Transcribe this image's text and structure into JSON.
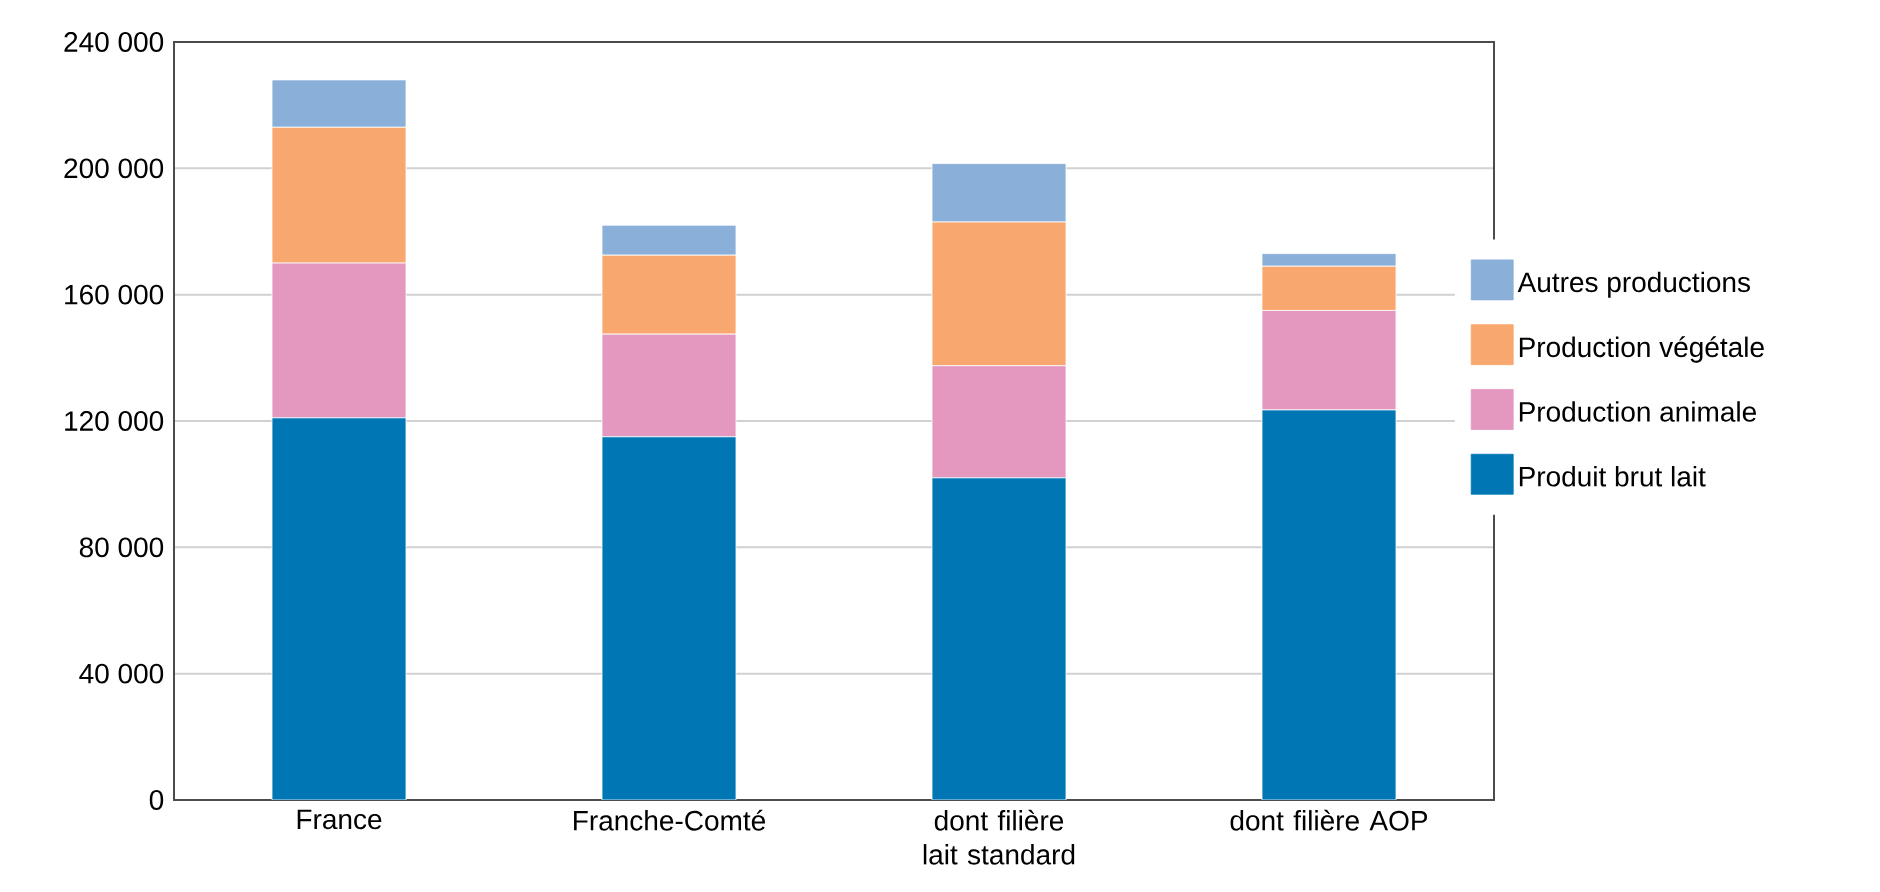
{
  "chart_data": {
    "type": "bar",
    "stacked": true,
    "categories": [
      "France",
      "Franche-Comté",
      "dont filière lait standard",
      "dont filière AOP"
    ],
    "series": [
      {
        "name": "Produit brut lait",
        "color": "#0077b4",
        "values": [
          121000,
          115000,
          102000,
          123500
        ]
      },
      {
        "name": "Production animale",
        "color": "#e498c0",
        "values": [
          49000,
          32500,
          35500,
          31500
        ]
      },
      {
        "name": "Production végétale",
        "color": "#f8a86e",
        "values": [
          43000,
          25000,
          45500,
          14000
        ]
      },
      {
        "name": "Autres productions",
        "color": "#8aafd8",
        "values": [
          15000,
          9500,
          18500,
          4000
        ]
      }
    ],
    "ylim": [
      0,
      240000
    ],
    "yticks": [
      {
        "value": 0,
        "label": "0"
      },
      {
        "value": 40000,
        "label": "40 000"
      },
      {
        "value": 80000,
        "label": "80 000"
      },
      {
        "value": 120000,
        "label": "120 000"
      },
      {
        "value": 160000,
        "label": "160 000"
      },
      {
        "value": 200000,
        "label": "200 000"
      },
      {
        "value": 240000,
        "label": "240 000"
      }
    ],
    "grid": "y",
    "legend": "right"
  }
}
